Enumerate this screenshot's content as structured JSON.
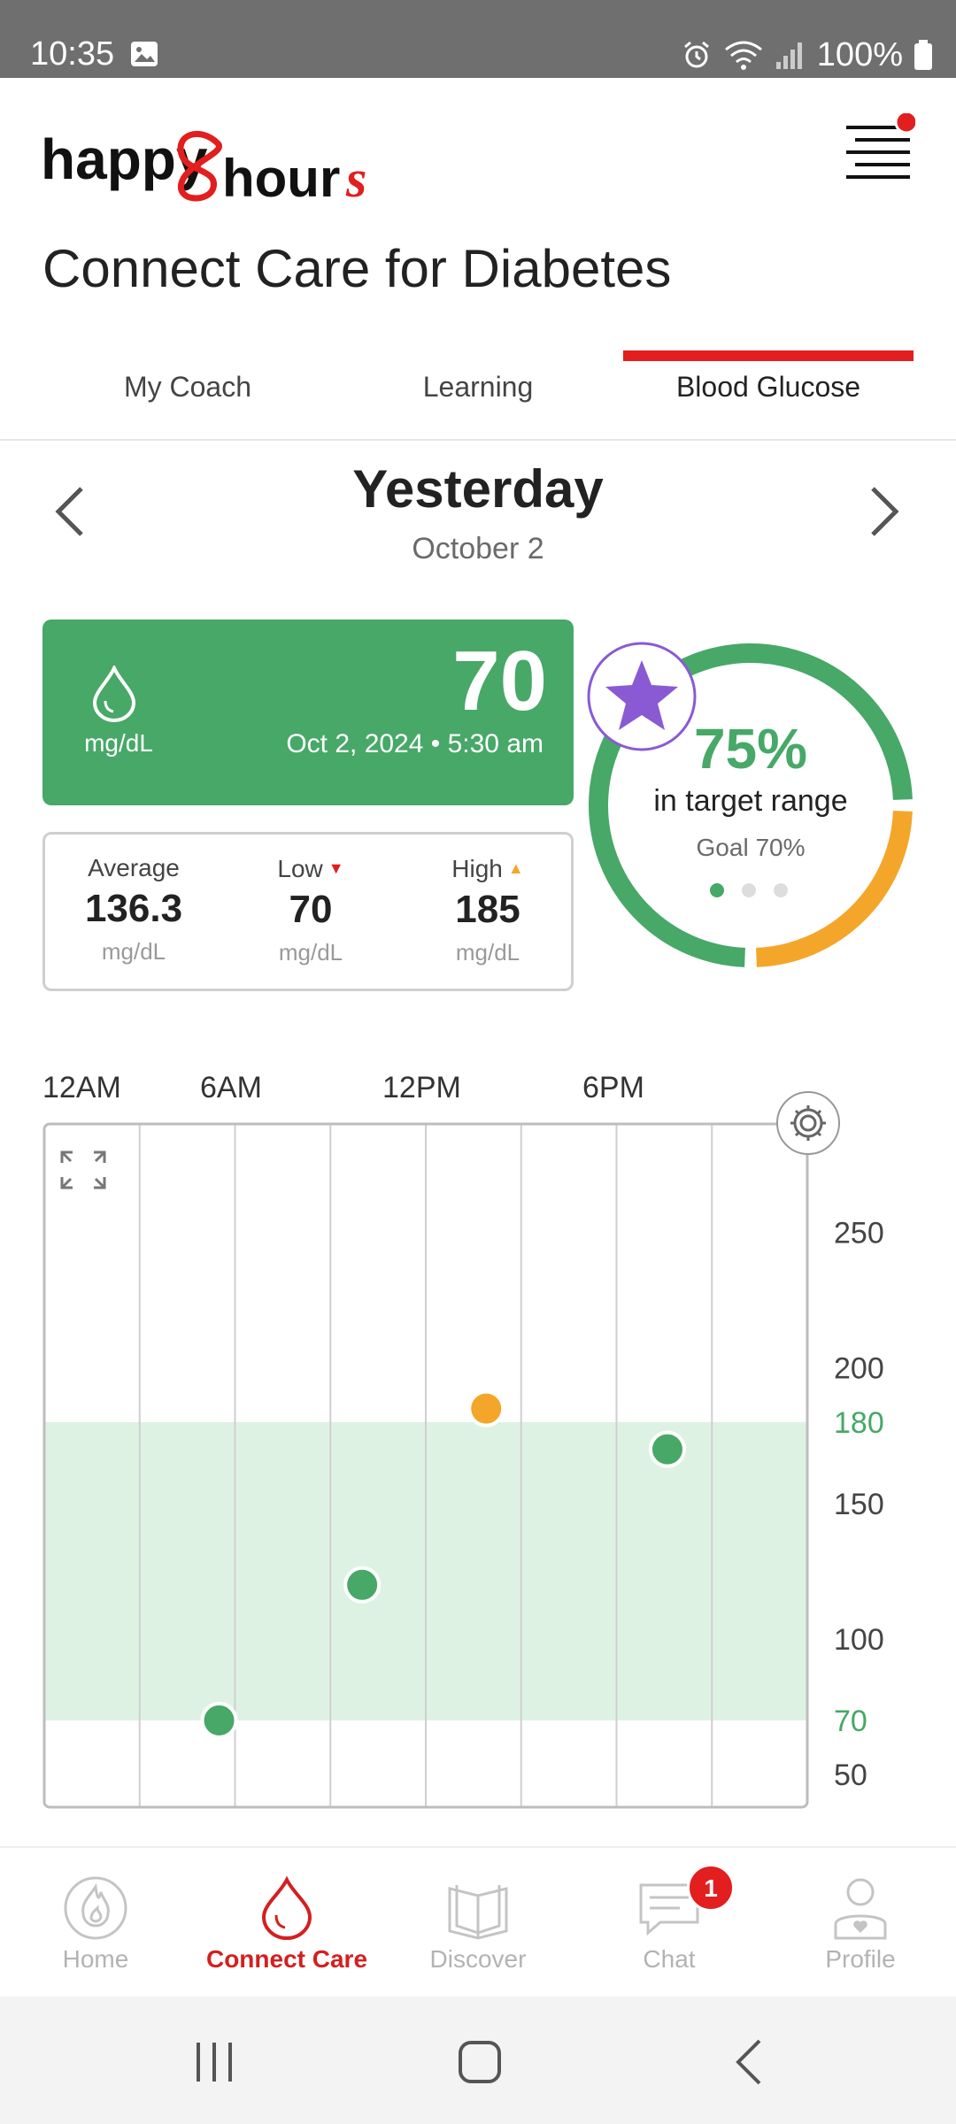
{
  "status_bar": {
    "time": "10:35",
    "battery": "100%"
  },
  "app": {
    "title": "Connect Care for Diabetes",
    "tabs": [
      {
        "label": "My Coach",
        "active": false
      },
      {
        "label": "Learning",
        "active": false
      },
      {
        "label": "Blood Glucose",
        "active": true
      }
    ]
  },
  "date_nav": {
    "title": "Yesterday",
    "subtitle": "October 2"
  },
  "reading": {
    "value": "70",
    "unit": "mg/dL",
    "timestamp": "Oct 2, 2024 • 5:30 am"
  },
  "stats": [
    {
      "label": "Average",
      "value": "136.3",
      "unit": "mg/dL",
      "indicator": ""
    },
    {
      "label": "Low",
      "value": "70",
      "unit": "mg/dL",
      "indicator": "▼"
    },
    {
      "label": "High",
      "value": "185",
      "unit": "mg/dL",
      "indicator": "▲"
    }
  ],
  "target": {
    "percent_label": "75%",
    "label": "in target range",
    "goal": "Goal 70%",
    "in_range_fraction": 0.75,
    "colors": {
      "in_range": "#47a868",
      "high": "#f4a62a",
      "low": "#e21e1e"
    }
  },
  "chart_data": {
    "type": "scatter",
    "x_tick_labels": [
      "12AM",
      "6AM",
      "12PM",
      "6PM"
    ],
    "y_tick_labels": [
      "250",
      "200",
      "180",
      "150",
      "100",
      "70",
      "50"
    ],
    "y_ticks": [
      250,
      200,
      180,
      150,
      100,
      70,
      50
    ],
    "target_range": [
      70,
      180
    ],
    "x_range_hours": [
      0,
      24
    ],
    "points": [
      {
        "hour": 5.5,
        "value": 70,
        "status": "in_range"
      },
      {
        "hour": 10.0,
        "value": 120,
        "status": "in_range"
      },
      {
        "hour": 13.9,
        "value": 185,
        "status": "high"
      },
      {
        "hour": 19.6,
        "value": 170,
        "status": "in_range"
      }
    ]
  },
  "bottom_nav": [
    {
      "label": "Home",
      "icon": "flame-icon",
      "active": false
    },
    {
      "label": "Connect Care",
      "icon": "drop-icon",
      "active": true
    },
    {
      "label": "Discover",
      "icon": "book-icon",
      "active": false
    },
    {
      "label": "Chat",
      "icon": "chat-icon",
      "active": false,
      "badge": "1"
    },
    {
      "label": "Profile",
      "icon": "profile-icon",
      "active": false
    }
  ]
}
